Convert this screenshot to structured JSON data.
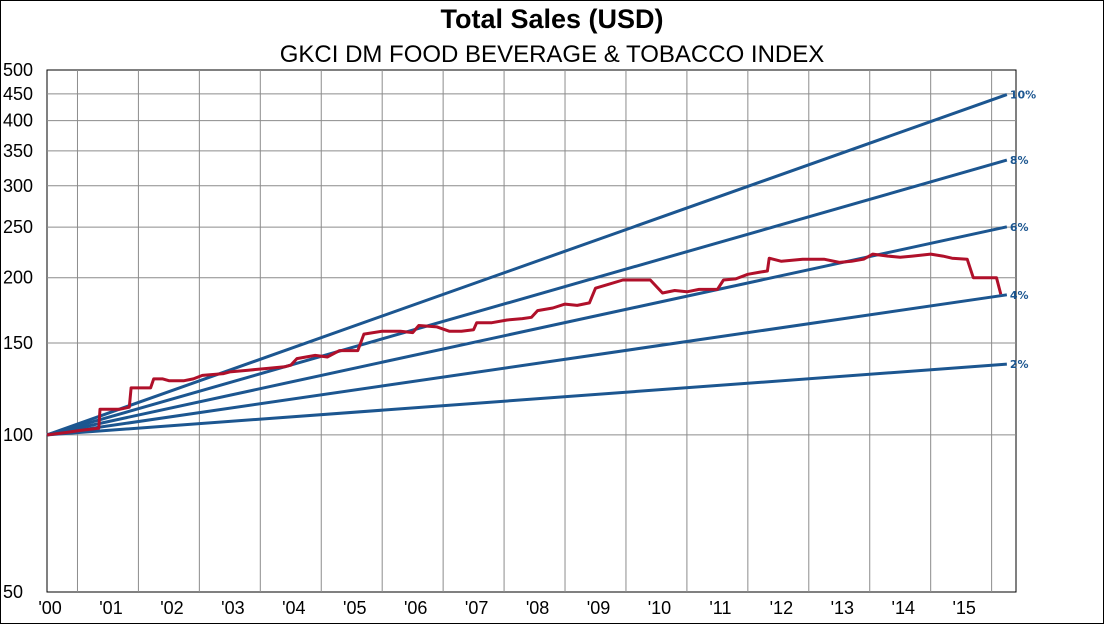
{
  "chart_data": {
    "type": "line",
    "title": "Total Sales (USD)",
    "subtitle": "GKCI DM FOOD BEVERAGE & TOBACCO INDEX",
    "xlabel": "",
    "ylabel": "",
    "y_scale": "log",
    "ylim": [
      50,
      500
    ],
    "y_ticks": [
      50,
      100,
      150,
      200,
      250,
      300,
      350,
      400,
      450,
      500
    ],
    "y_tick_labels": [
      "50",
      "100",
      "150",
      "200",
      "250",
      "300",
      "350",
      "400",
      "450",
      "500"
    ],
    "xlim": [
      2000.0,
      2015.9
    ],
    "x_ticks": [
      2000,
      2001,
      2002,
      2003,
      2004,
      2005,
      2006,
      2007,
      2008,
      2009,
      2010,
      2011,
      2012,
      2013,
      2014,
      2015
    ],
    "x_tick_labels": [
      "'00",
      "'01",
      "'02",
      "'03",
      "'04",
      "'05",
      "'06",
      "'07",
      "'08",
      "'09",
      "'10",
      "'11",
      "'12",
      "'13",
      "'14",
      "'15"
    ],
    "grid": true,
    "reference_lines": [
      {
        "label": "2%",
        "rate": 0.02,
        "start": 100
      },
      {
        "label": "4%",
        "rate": 0.04,
        "start": 100
      },
      {
        "label": "6%",
        "rate": 0.06,
        "start": 100
      },
      {
        "label": "8%",
        "rate": 0.08,
        "start": 100
      },
      {
        "label": "10%",
        "rate": 0.1,
        "start": 100
      }
    ],
    "series": [
      {
        "color": "#b0102a",
        "points": [
          [
            2000.0,
            100
          ],
          [
            2000.3,
            101
          ],
          [
            2000.55,
            102
          ],
          [
            2000.85,
            103
          ],
          [
            2000.87,
            112
          ],
          [
            2001.2,
            112
          ],
          [
            2001.35,
            113
          ],
          [
            2001.38,
            123
          ],
          [
            2001.7,
            123
          ],
          [
            2001.75,
            128
          ],
          [
            2001.9,
            128
          ],
          [
            2002.0,
            127
          ],
          [
            2002.25,
            127
          ],
          [
            2002.4,
            128
          ],
          [
            2002.55,
            130
          ],
          [
            2002.9,
            131
          ],
          [
            2003.0,
            132
          ],
          [
            2003.3,
            133
          ],
          [
            2003.6,
            134
          ],
          [
            2003.9,
            135
          ],
          [
            2004.0,
            136
          ],
          [
            2004.1,
            140
          ],
          [
            2004.25,
            141
          ],
          [
            2004.4,
            142
          ],
          [
            2004.6,
            141
          ],
          [
            2004.8,
            145
          ],
          [
            2005.1,
            145
          ],
          [
            2005.2,
            156
          ],
          [
            2005.5,
            158
          ],
          [
            2005.6,
            158
          ],
          [
            2005.8,
            158
          ],
          [
            2006.0,
            157
          ],
          [
            2006.1,
            162
          ],
          [
            2006.4,
            161
          ],
          [
            2006.6,
            158
          ],
          [
            2006.8,
            158
          ],
          [
            2007.0,
            159
          ],
          [
            2007.05,
            164
          ],
          [
            2007.3,
            164
          ],
          [
            2007.55,
            166
          ],
          [
            2007.8,
            167
          ],
          [
            2007.95,
            168
          ],
          [
            2008.05,
            173
          ],
          [
            2008.3,
            175
          ],
          [
            2008.5,
            178
          ],
          [
            2008.7,
            177
          ],
          [
            2008.9,
            179
          ],
          [
            2009.0,
            191
          ],
          [
            2009.2,
            194
          ],
          [
            2009.45,
            198
          ],
          [
            2009.9,
            198
          ],
          [
            2010.1,
            187
          ],
          [
            2010.3,
            189
          ],
          [
            2010.5,
            188
          ],
          [
            2010.7,
            190
          ],
          [
            2011.0,
            190
          ],
          [
            2011.1,
            198
          ],
          [
            2011.3,
            199
          ],
          [
            2011.5,
            203
          ],
          [
            2011.7,
            205
          ],
          [
            2011.82,
            206
          ],
          [
            2011.85,
            218
          ],
          [
            2012.05,
            215
          ],
          [
            2012.4,
            217
          ],
          [
            2012.75,
            217
          ],
          [
            2013.0,
            214
          ],
          [
            2013.2,
            215
          ],
          [
            2013.4,
            217
          ],
          [
            2013.55,
            222
          ],
          [
            2013.8,
            220
          ],
          [
            2014.0,
            219
          ],
          [
            2014.2,
            220
          ],
          [
            2014.5,
            222
          ],
          [
            2014.7,
            220
          ],
          [
            2014.85,
            218
          ],
          [
            2015.1,
            217
          ],
          [
            2015.2,
            200
          ],
          [
            2015.4,
            200
          ],
          [
            2015.58,
            200
          ],
          [
            2015.65,
            186
          ]
        ]
      }
    ],
    "colors": {
      "reference_line": "#1c5690",
      "series": "#b0102a",
      "grid": "#8c8c8c",
      "ref_label": "#1c5690"
    }
  }
}
